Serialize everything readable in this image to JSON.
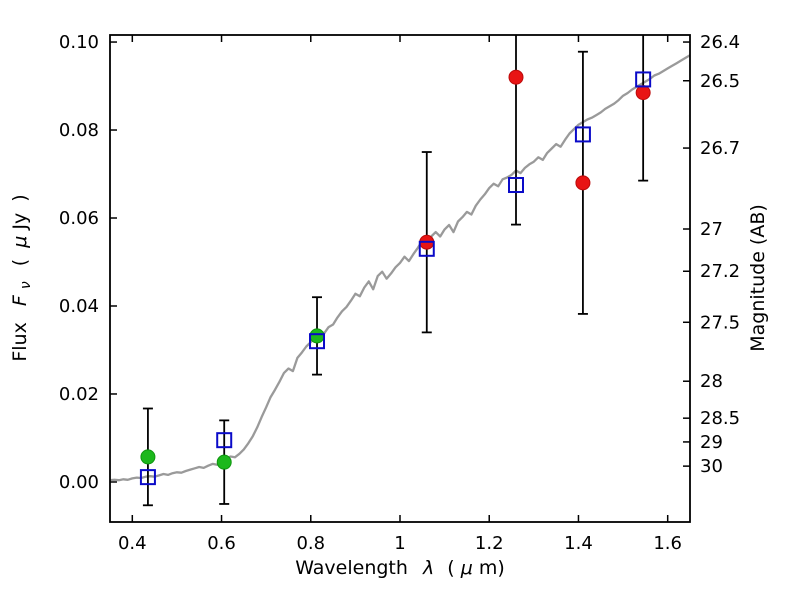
{
  "labels": {
    "x_word": "Wavelength",
    "x_sym": "λ",
    "x_paren_open": "(",
    "x_mu": "μ",
    "x_paren_close": "m)",
    "y_word": "Flux",
    "y_sym": "F",
    "y_sub": "ν",
    "y_paren_open": "(",
    "y_mu": "μ",
    "y_unit": "Jy",
    "y_paren_close": ")",
    "right": "Magnitude (AB)"
  },
  "chart_data": {
    "type": "line",
    "title": "",
    "xlabel": "Wavelength λ (μm)",
    "ylabel": "Flux Fν ( μJy )",
    "ylabel_right": "Magnitude (AB)",
    "xlim": [
      0.35,
      1.65
    ],
    "ylim": [
      -0.0091,
      0.1016
    ],
    "grid": false,
    "legend": null,
    "x_ticks": [
      {
        "value": 0.4,
        "label": "0.4"
      },
      {
        "value": 0.6,
        "label": "0.6"
      },
      {
        "value": 0.8,
        "label": "0.8"
      },
      {
        "value": 1.0,
        "label": "1"
      },
      {
        "value": 1.2,
        "label": "1.2"
      },
      {
        "value": 1.4,
        "label": "1.4"
      },
      {
        "value": 1.6,
        "label": "1.6"
      }
    ],
    "y_ticks_left": [
      {
        "value": 0.0,
        "label": "0.00"
      },
      {
        "value": 0.02,
        "label": "0.02"
      },
      {
        "value": 0.04,
        "label": "0.04"
      },
      {
        "value": 0.06,
        "label": "0.06"
      },
      {
        "value": 0.08,
        "label": "0.08"
      },
      {
        "value": 0.1,
        "label": "0.10"
      }
    ],
    "y_ticks_right": [
      {
        "flux": 0.1,
        "label": "26.4"
      },
      {
        "flux": 0.0912,
        "label": "26.5"
      },
      {
        "flux": 0.0759,
        "label": "26.7"
      },
      {
        "flux": 0.0575,
        "label": "27"
      },
      {
        "flux": 0.0479,
        "label": "27.2"
      },
      {
        "flux": 0.0363,
        "label": "27.5"
      },
      {
        "flux": 0.0229,
        "label": "28"
      },
      {
        "flux": 0.0145,
        "label": "28.5"
      },
      {
        "flux": 0.0091,
        "label": "29"
      },
      {
        "flux": 0.0036,
        "label": "30"
      }
    ],
    "series": [
      {
        "name": "model-spectrum",
        "kind": "line",
        "color": "#9a9a9a",
        "linewidth": 2.3,
        "points": [
          [
            0.35,
            0.0004
          ],
          [
            0.36,
            0.0005
          ],
          [
            0.37,
            0.0004
          ],
          [
            0.38,
            0.0006
          ],
          [
            0.39,
            0.0005
          ],
          [
            0.4,
            0.0008
          ],
          [
            0.41,
            0.001
          ],
          [
            0.42,
            0.0009
          ],
          [
            0.43,
            0.0012
          ],
          [
            0.44,
            0.0013
          ],
          [
            0.45,
            0.0012
          ],
          [
            0.46,
            0.0015
          ],
          [
            0.47,
            0.0018
          ],
          [
            0.48,
            0.0016
          ],
          [
            0.49,
            0.002
          ],
          [
            0.5,
            0.0022
          ],
          [
            0.51,
            0.0021
          ],
          [
            0.52,
            0.0025
          ],
          [
            0.53,
            0.0028
          ],
          [
            0.54,
            0.0031
          ],
          [
            0.55,
            0.0034
          ],
          [
            0.56,
            0.0032
          ],
          [
            0.57,
            0.0037
          ],
          [
            0.58,
            0.0041
          ],
          [
            0.59,
            0.0039
          ],
          [
            0.6,
            0.0046
          ],
          [
            0.61,
            0.0053
          ],
          [
            0.62,
            0.0058
          ],
          [
            0.63,
            0.0056
          ],
          [
            0.64,
            0.0064
          ],
          [
            0.65,
            0.0074
          ],
          [
            0.66,
            0.0088
          ],
          [
            0.67,
            0.0104
          ],
          [
            0.68,
            0.0124
          ],
          [
            0.69,
            0.0148
          ],
          [
            0.7,
            0.017
          ],
          [
            0.71,
            0.0193
          ],
          [
            0.72,
            0.021
          ],
          [
            0.73,
            0.0228
          ],
          [
            0.74,
            0.0248
          ],
          [
            0.75,
            0.0258
          ],
          [
            0.76,
            0.0252
          ],
          [
            0.77,
            0.0282
          ],
          [
            0.78,
            0.0294
          ],
          [
            0.79,
            0.0308
          ],
          [
            0.8,
            0.0318
          ],
          [
            0.81,
            0.033
          ],
          [
            0.82,
            0.0344
          ],
          [
            0.83,
            0.0338
          ],
          [
            0.84,
            0.0352
          ],
          [
            0.85,
            0.0358
          ],
          [
            0.86,
            0.0374
          ],
          [
            0.87,
            0.0388
          ],
          [
            0.88,
            0.0398
          ],
          [
            0.89,
            0.0412
          ],
          [
            0.9,
            0.0428
          ],
          [
            0.91,
            0.0422
          ],
          [
            0.92,
            0.0442
          ],
          [
            0.93,
            0.0456
          ],
          [
            0.94,
            0.0438
          ],
          [
            0.95,
            0.0468
          ],
          [
            0.96,
            0.0478
          ],
          [
            0.97,
            0.0462
          ],
          [
            0.98,
            0.0474
          ],
          [
            0.99,
            0.0488
          ],
          [
            1.0,
            0.0498
          ],
          [
            1.01,
            0.0512
          ],
          [
            1.02,
            0.0502
          ],
          [
            1.03,
            0.0518
          ],
          [
            1.04,
            0.0532
          ],
          [
            1.05,
            0.0548
          ],
          [
            1.06,
            0.0544
          ],
          [
            1.07,
            0.0558
          ],
          [
            1.08,
            0.0568
          ],
          [
            1.09,
            0.0558
          ],
          [
            1.1,
            0.0574
          ],
          [
            1.11,
            0.0584
          ],
          [
            1.12,
            0.0568
          ],
          [
            1.13,
            0.0592
          ],
          [
            1.14,
            0.0602
          ],
          [
            1.15,
            0.0614
          ],
          [
            1.16,
            0.0608
          ],
          [
            1.17,
            0.0628
          ],
          [
            1.18,
            0.0642
          ],
          [
            1.19,
            0.0654
          ],
          [
            1.2,
            0.0668
          ],
          [
            1.21,
            0.0678
          ],
          [
            1.22,
            0.0672
          ],
          [
            1.23,
            0.0688
          ],
          [
            1.24,
            0.0692
          ],
          [
            1.25,
            0.0698
          ],
          [
            1.26,
            0.0708
          ],
          [
            1.27,
            0.0702
          ],
          [
            1.28,
            0.0714
          ],
          [
            1.29,
            0.0722
          ],
          [
            1.3,
            0.0728
          ],
          [
            1.31,
            0.0738
          ],
          [
            1.32,
            0.0732
          ],
          [
            1.33,
            0.0748
          ],
          [
            1.34,
            0.0758
          ],
          [
            1.35,
            0.0768
          ],
          [
            1.36,
            0.0762
          ],
          [
            1.37,
            0.0778
          ],
          [
            1.38,
            0.0792
          ],
          [
            1.39,
            0.0802
          ],
          [
            1.4,
            0.0812
          ],
          [
            1.41,
            0.0818
          ],
          [
            1.42,
            0.0824
          ],
          [
            1.43,
            0.0828
          ],
          [
            1.44,
            0.0834
          ],
          [
            1.45,
            0.084
          ],
          [
            1.46,
            0.0848
          ],
          [
            1.47,
            0.0854
          ],
          [
            1.48,
            0.086
          ],
          [
            1.49,
            0.0868
          ],
          [
            1.5,
            0.0878
          ],
          [
            1.51,
            0.0884
          ],
          [
            1.52,
            0.0892
          ],
          [
            1.53,
            0.0898
          ],
          [
            1.54,
            0.0904
          ],
          [
            1.55,
            0.091
          ],
          [
            1.56,
            0.0916
          ],
          [
            1.57,
            0.0924
          ],
          [
            1.58,
            0.0928
          ],
          [
            1.59,
            0.0934
          ],
          [
            1.6,
            0.094
          ],
          [
            1.61,
            0.0946
          ],
          [
            1.62,
            0.0952
          ],
          [
            1.63,
            0.0958
          ],
          [
            1.64,
            0.0964
          ],
          [
            1.65,
            0.097
          ]
        ]
      },
      {
        "name": "model-photometry",
        "kind": "scatter",
        "marker": "open-square",
        "color": "#0a0ac8",
        "points": [
          {
            "x": 0.435,
            "y": 0.0011
          },
          {
            "x": 0.606,
            "y": 0.0095
          },
          {
            "x": 0.814,
            "y": 0.032
          },
          {
            "x": 1.06,
            "y": 0.053
          },
          {
            "x": 1.26,
            "y": 0.0675
          },
          {
            "x": 1.41,
            "y": 0.079
          },
          {
            "x": 1.545,
            "y": 0.0915
          }
        ]
      },
      {
        "name": "observed-photometry-optical",
        "kind": "scatter",
        "marker": "filled-circle",
        "color": "#1cb81c",
        "edge_color": "#0f960f",
        "errorbar_color": "#000000",
        "points": [
          {
            "x": 0.435,
            "y": 0.0057,
            "yerr": 0.011
          },
          {
            "x": 0.606,
            "y": 0.0045,
            "yerr": 0.0095
          },
          {
            "x": 0.814,
            "y": 0.0332,
            "yerr": 0.0088
          }
        ]
      },
      {
        "name": "observed-photometry-nir",
        "kind": "scatter",
        "marker": "filled-circle",
        "color": "#e81414",
        "edge_color": "#bb0a0a",
        "errorbar_color": "#000000",
        "points": [
          {
            "x": 1.06,
            "y": 0.0545,
            "yerr": 0.0205
          },
          {
            "x": 1.26,
            "y": 0.092,
            "yerr": 0.0335
          },
          {
            "x": 1.41,
            "y": 0.068,
            "yerr": 0.0298
          },
          {
            "x": 1.545,
            "y": 0.0885,
            "yerr": 0.02
          }
        ]
      }
    ]
  }
}
